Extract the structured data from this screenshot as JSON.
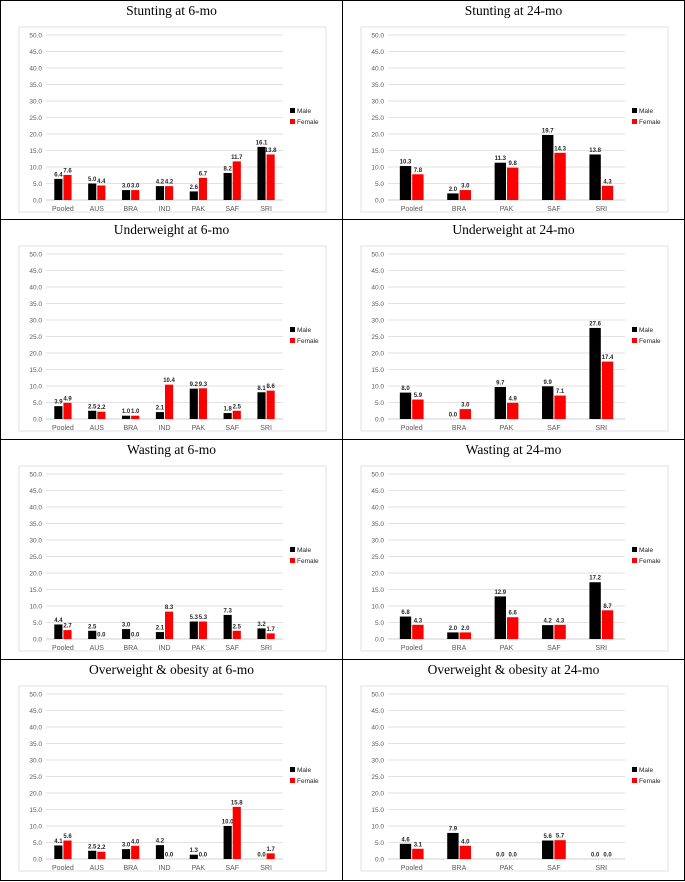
{
  "colors": {
    "male": "#000000",
    "female": "#ff0000",
    "grid": "#d9d9d9",
    "axis_text": "#595959"
  },
  "chart_data": [
    {
      "type": "bar",
      "title": "Stunting at 6-mo",
      "categories": [
        "Pooled",
        "AUS",
        "BRA",
        "IND",
        "PAK",
        "SAF",
        "SRI"
      ],
      "series": [
        {
          "name": "Male",
          "values": [
            6.4,
            5.0,
            3.0,
            4.2,
            2.6,
            8.2,
            16.1
          ],
          "labels": [
            "6.4",
            "5.0",
            "3.0",
            "4.2",
            "2.6",
            "8.2",
            "16.1"
          ]
        },
        {
          "name": "Female",
          "values": [
            7.6,
            4.4,
            3.0,
            4.2,
            6.7,
            11.7,
            13.8
          ],
          "labels": [
            "7.6",
            "4.4",
            "3.0",
            "4.2",
            "6.7",
            "11.7",
            "13.8"
          ]
        }
      ],
      "ylim": [
        0,
        50
      ],
      "yticks": [
        "0.0",
        "5.0",
        "10.0",
        "15.0",
        "20.0",
        "25.0",
        "30.0",
        "35.0",
        "40.0",
        "45.0",
        "50.0"
      ],
      "legend": "right"
    },
    {
      "type": "bar",
      "title": "Stunting at 24-mo",
      "categories": [
        "Pooled",
        "BRA",
        "PAK",
        "SAF",
        "SRI"
      ],
      "series": [
        {
          "name": "Male",
          "values": [
            10.3,
            2.0,
            11.3,
            19.7,
            13.8
          ],
          "labels": [
            "10.3",
            "2.0",
            "11.3",
            "19.7",
            "13.8"
          ]
        },
        {
          "name": "Female",
          "values": [
            7.8,
            3.0,
            9.8,
            14.3,
            4.3
          ],
          "labels": [
            "7.8",
            "3.0",
            "9.8",
            "14.3",
            "4.3"
          ]
        }
      ],
      "ylim": [
        0,
        50
      ],
      "yticks": [
        "0.0",
        "5.0",
        "10.0",
        "15.0",
        "20.0",
        "25.0",
        "30.0",
        "35.0",
        "40.0",
        "45.0",
        "50.0"
      ],
      "legend": "right"
    },
    {
      "type": "bar",
      "title": "Underweight at 6-mo",
      "categories": [
        "Pooled",
        "AUS",
        "BRA",
        "IND",
        "PAK",
        "SAF",
        "SRI"
      ],
      "series": [
        {
          "name": "Male",
          "values": [
            3.9,
            2.5,
            1.0,
            2.1,
            9.2,
            1.8,
            8.1
          ],
          "labels": [
            "3.9",
            "2.5",
            "1.0",
            "2.1",
            "9.2",
            "1.8",
            "8.1"
          ]
        },
        {
          "name": "Female",
          "values": [
            4.9,
            2.2,
            1.0,
            10.4,
            9.3,
            2.5,
            8.6
          ],
          "labels": [
            "4.9",
            "2.2",
            "1.0",
            "10.4",
            "9.3",
            "2.5",
            "8.6"
          ]
        }
      ],
      "ylim": [
        0,
        50
      ],
      "yticks": [
        "0.0",
        "5.0",
        "10.0",
        "15.0",
        "20.0",
        "25.0",
        "30.0",
        "35.0",
        "40.0",
        "45.0",
        "50.0"
      ],
      "legend": "right"
    },
    {
      "type": "bar",
      "title": "Underweight at 24-mo",
      "categories": [
        "Pooled",
        "BRA",
        "PAK",
        "SAF",
        "SRI"
      ],
      "series": [
        {
          "name": "Male",
          "values": [
            8.0,
            0.0,
            9.7,
            9.9,
            27.6
          ],
          "labels": [
            "8.0",
            "0.0",
            "9.7",
            "9.9",
            "27.6"
          ]
        },
        {
          "name": "Female",
          "values": [
            5.9,
            3.0,
            4.9,
            7.1,
            17.4
          ],
          "labels": [
            "5.9",
            "3.0",
            "4.9",
            "7.1",
            "17.4"
          ]
        }
      ],
      "ylim": [
        0,
        50
      ],
      "yticks": [
        "0.0",
        "5.0",
        "10.0",
        "15.0",
        "20.0",
        "25.0",
        "30.0",
        "35.0",
        "40.0",
        "45.0",
        "50.0"
      ],
      "legend": "right"
    },
    {
      "type": "bar",
      "title": "Wasting at 6-mo",
      "categories": [
        "Pooled",
        "AUS",
        "BRA",
        "IND",
        "PAK",
        "SAF",
        "SRI"
      ],
      "series": [
        {
          "name": "Male",
          "values": [
            4.4,
            2.5,
            3.0,
            2.1,
            5.3,
            7.3,
            3.2
          ],
          "labels": [
            "4.4",
            "2.5",
            "3.0",
            "2.1",
            "5.3",
            "7.3",
            "3.2"
          ]
        },
        {
          "name": "Female",
          "values": [
            2.7,
            0.0,
            0.0,
            8.3,
            5.3,
            2.5,
            1.7
          ],
          "labels": [
            "2.7",
            "0.0",
            "0.0",
            "8.3",
            "5.3",
            "2.5",
            "1.7"
          ]
        }
      ],
      "ylim": [
        0,
        50
      ],
      "yticks": [
        "0.0",
        "5.0",
        "10.0",
        "15.0",
        "20.0",
        "25.0",
        "30.0",
        "35.0",
        "40.0",
        "45.0",
        "50.0"
      ],
      "legend": "right"
    },
    {
      "type": "bar",
      "title": "Wasting at 24-mo",
      "categories": [
        "Pooled",
        "BRA",
        "PAK",
        "SAF",
        "SRI"
      ],
      "series": [
        {
          "name": "Male",
          "values": [
            6.8,
            2.0,
            12.9,
            4.2,
            17.2
          ],
          "labels": [
            "6.8",
            "2.0",
            "12.9",
            "4.2",
            "17.2"
          ]
        },
        {
          "name": "Female",
          "values": [
            4.3,
            2.0,
            6.6,
            4.3,
            8.7
          ],
          "labels": [
            "4.3",
            "2.0",
            "6.6",
            "4.3",
            "8.7"
          ]
        }
      ],
      "ylim": [
        0,
        50
      ],
      "yticks": [
        "0.0",
        "5.0",
        "10.0",
        "15.0",
        "20.0",
        "25.0",
        "30.0",
        "35.0",
        "40.0",
        "45.0",
        "50.0"
      ],
      "legend": "right"
    },
    {
      "type": "bar",
      "title": "Overweight & obesity at 6-mo",
      "categories": [
        "Pooled",
        "AUS",
        "BRA",
        "IND",
        "PAK",
        "SAF",
        "SRI"
      ],
      "series": [
        {
          "name": "Male",
          "values": [
            4.1,
            2.5,
            3.0,
            4.2,
            1.3,
            10.0,
            0.0
          ],
          "labels": [
            "4.1",
            "2.5",
            "3.0",
            "4.2",
            "1.3",
            "10.0",
            "0.0"
          ]
        },
        {
          "name": "Female",
          "values": [
            5.6,
            2.2,
            4.0,
            0.0,
            0.0,
            15.8,
            1.7
          ],
          "labels": [
            "5.6",
            "2.2",
            "4.0",
            "0.0",
            "0.0",
            "15.8",
            "1.7"
          ]
        }
      ],
      "ylim": [
        0,
        50
      ],
      "yticks": [
        "0.0",
        "5.0",
        "10.0",
        "15.0",
        "20.0",
        "25.0",
        "30.0",
        "35.0",
        "40.0",
        "45.0",
        "50.0"
      ],
      "legend": "right"
    },
    {
      "type": "bar",
      "title": "Overweight & obesity at 24-mo",
      "categories": [
        "Pooled",
        "BRA",
        "PAK",
        "SAF",
        "SRI"
      ],
      "series": [
        {
          "name": "Male",
          "values": [
            4.6,
            7.9,
            0.0,
            5.6,
            0.0
          ],
          "labels": [
            "4.6",
            "7.9",
            "0.0",
            "5.6",
            "0.0"
          ]
        },
        {
          "name": "Female",
          "values": [
            3.1,
            4.0,
            0.0,
            5.7,
            0.0
          ],
          "labels": [
            "3.1",
            "4.0",
            "0.0",
            "5.7",
            "0.0"
          ]
        }
      ],
      "ylim": [
        0,
        50
      ],
      "yticks": [
        "0.0",
        "5.0",
        "10.0",
        "15.0",
        "20.0",
        "25.0",
        "30.0",
        "35.0",
        "40.0",
        "45.0",
        "50.0"
      ],
      "legend": "right"
    }
  ]
}
